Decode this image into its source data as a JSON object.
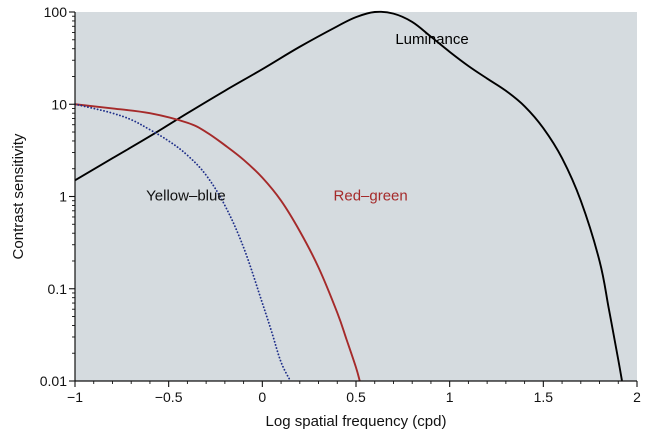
{
  "chart_data": {
    "type": "line",
    "title": "",
    "xlabel": "Log spatial frequency (cpd)",
    "ylabel": "Contrast sensitivity",
    "xlim": [
      -1,
      2
    ],
    "ylim": [
      0.01,
      100
    ],
    "y_scale": "log",
    "grid": false,
    "legend": "none (series labeled directly on plot)",
    "plot_background": "#d5dbdf",
    "x_ticks": [
      -1,
      -0.5,
      0,
      0.5,
      1,
      1.5,
      2
    ],
    "x_tick_labels": [
      "−1",
      "−0.5",
      "0",
      "0.5",
      "1",
      "1.5",
      "2"
    ],
    "y_ticks": [
      0.01,
      0.1,
      1,
      10,
      100
    ],
    "y_tick_labels": [
      "0.01",
      "0.1",
      "1",
      "10",
      "100"
    ],
    "series": [
      {
        "name": "Luminance",
        "color": "#000000",
        "style": "solid",
        "x": [
          -1.0,
          -0.8,
          -0.6,
          -0.4,
          -0.2,
          0.0,
          0.2,
          0.4,
          0.5,
          0.6,
          0.7,
          0.8,
          0.9,
          1.0,
          1.1,
          1.2,
          1.3,
          1.4,
          1.5,
          1.6,
          1.7,
          1.8,
          1.85,
          1.9,
          1.92
        ],
        "y": [
          1.5,
          2.6,
          4.5,
          8.0,
          14,
          24,
          42,
          70,
          88,
          100,
          96,
          78,
          54,
          37,
          26,
          19,
          14,
          9.5,
          5.5,
          2.6,
          0.9,
          0.2,
          0.06,
          0.017,
          0.01
        ]
      },
      {
        "name": "Red–green",
        "color": "#a52a2a",
        "style": "solid",
        "x": [
          -1.0,
          -0.8,
          -0.6,
          -0.4,
          -0.3,
          -0.2,
          -0.1,
          0.0,
          0.1,
          0.2,
          0.3,
          0.4,
          0.45,
          0.5,
          0.52
        ],
        "y": [
          10,
          9.0,
          8.0,
          6.3,
          5.0,
          3.6,
          2.5,
          1.6,
          0.9,
          0.42,
          0.17,
          0.055,
          0.028,
          0.014,
          0.01
        ]
      },
      {
        "name": "Yellow–blue",
        "color": "#1f2f8a",
        "style": "dotted",
        "x": [
          -1.0,
          -0.9,
          -0.8,
          -0.7,
          -0.6,
          -0.5,
          -0.4,
          -0.3,
          -0.2,
          -0.1,
          0.0,
          0.05,
          0.1,
          0.15
        ],
        "y": [
          10,
          9.0,
          8.0,
          6.8,
          5.3,
          4.0,
          2.8,
          1.7,
          0.8,
          0.28,
          0.07,
          0.034,
          0.016,
          0.01
        ]
      }
    ],
    "series_labels": [
      {
        "text": "Luminance",
        "x": 0.71,
        "y": 45,
        "color": "#000000"
      },
      {
        "text": "Red–green",
        "x": 0.38,
        "y": 0.9,
        "color": "#a52a2a"
      },
      {
        "text": "Yellow–blue",
        "x": -0.62,
        "y": 0.9,
        "color": "#111111"
      }
    ]
  }
}
